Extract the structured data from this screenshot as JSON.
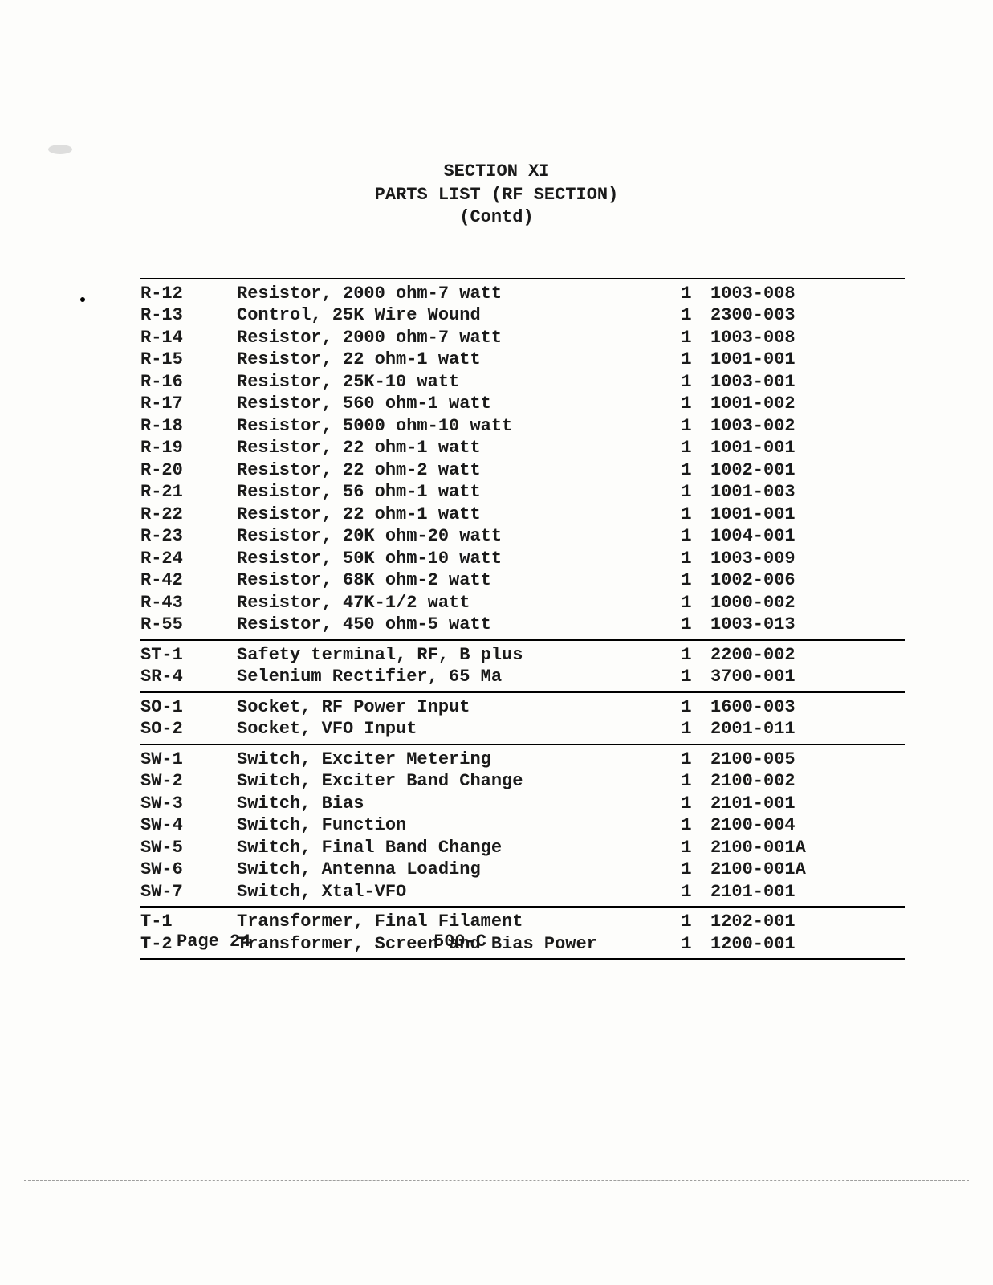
{
  "header": {
    "line1": "SECTION XI",
    "line2": "PARTS LIST (RF SECTION)",
    "line3": "(Contd)"
  },
  "groups": [
    [
      {
        "ref": "R-12",
        "desc": "Resistor, 2000 ohm-7 watt",
        "qty": "1",
        "part": "1003-008"
      },
      {
        "ref": "R-13",
        "desc": "Control, 25K Wire Wound",
        "qty": "1",
        "part": "2300-003"
      },
      {
        "ref": "R-14",
        "desc": "Resistor, 2000 ohm-7 watt",
        "qty": "1",
        "part": "1003-008"
      },
      {
        "ref": "R-15",
        "desc": "Resistor, 22 ohm-1 watt",
        "qty": "1",
        "part": "1001-001"
      },
      {
        "ref": "R-16",
        "desc": "Resistor, 25K-10 watt",
        "qty": "1",
        "part": "1003-001"
      },
      {
        "ref": "R-17",
        "desc": "Resistor, 560 ohm-1 watt",
        "qty": "1",
        "part": "1001-002"
      },
      {
        "ref": "R-18",
        "desc": "Resistor, 5000 ohm-10 watt",
        "qty": "1",
        "part": "1003-002"
      },
      {
        "ref": "R-19",
        "desc": "Resistor, 22 ohm-1 watt",
        "qty": "1",
        "part": "1001-001"
      },
      {
        "ref": "R-20",
        "desc": "Resistor, 22 ohm-2 watt",
        "qty": "1",
        "part": "1002-001"
      },
      {
        "ref": "R-21",
        "desc": "Resistor, 56 ohm-1 watt",
        "qty": "1",
        "part": "1001-003"
      },
      {
        "ref": "R-22",
        "desc": "Resistor, 22 ohm-1 watt",
        "qty": "1",
        "part": "1001-001"
      },
      {
        "ref": "R-23",
        "desc": "Resistor, 20K ohm-20 watt",
        "qty": "1",
        "part": "1004-001"
      },
      {
        "ref": "R-24",
        "desc": "Resistor, 50K ohm-10 watt",
        "qty": "1",
        "part": "1003-009"
      },
      {
        "ref": "R-42",
        "desc": "Resistor, 68K ohm-2 watt",
        "qty": "1",
        "part": "1002-006"
      },
      {
        "ref": "R-43",
        "desc": "Resistor, 47K-1/2 watt",
        "qty": "1",
        "part": "1000-002"
      },
      {
        "ref": "R-55",
        "desc": "Resistor, 450 ohm-5 watt",
        "qty": "1",
        "part": "1003-013"
      }
    ],
    [
      {
        "ref": "ST-1",
        "desc": "Safety terminal, RF, B plus",
        "qty": "1",
        "part": "2200-002"
      },
      {
        "ref": "SR-4",
        "desc": "Selenium Rectifier, 65 Ma",
        "qty": "1",
        "part": "3700-001"
      }
    ],
    [
      {
        "ref": "SO-1",
        "desc": "Socket, RF Power Input",
        "qty": "1",
        "part": "1600-003"
      },
      {
        "ref": "SO-2",
        "desc": "Socket, VFO Input",
        "qty": "1",
        "part": "2001-011"
      }
    ],
    [
      {
        "ref": "SW-1",
        "desc": "Switch, Exciter Metering",
        "qty": "1",
        "part": "2100-005"
      },
      {
        "ref": "SW-2",
        "desc": "Switch, Exciter Band Change",
        "qty": "1",
        "part": "2100-002"
      },
      {
        "ref": "SW-3",
        "desc": "Switch, Bias",
        "qty": "1",
        "part": "2101-001"
      },
      {
        "ref": "SW-4",
        "desc": "Switch, Function",
        "qty": "1",
        "part": "2100-004"
      },
      {
        "ref": "SW-5",
        "desc": "Switch, Final Band Change",
        "qty": "1",
        "part": "2100-001A"
      },
      {
        "ref": "SW-6",
        "desc": "Switch, Antenna Loading",
        "qty": "1",
        "part": "2100-001A"
      },
      {
        "ref": "SW-7",
        "desc": "Switch, Xtal-VFO",
        "qty": "1",
        "part": "2101-001"
      }
    ],
    [
      {
        "ref": "T-1",
        "desc": "Transformer, Final Filament",
        "qty": "1",
        "part": "1202-001"
      },
      {
        "ref": "T-2",
        "desc": "Transformer, Screen and Bias Power",
        "qty": "1",
        "part": "1200-001"
      }
    ]
  ],
  "footer": {
    "page": "Page 24",
    "model": "500-C"
  }
}
